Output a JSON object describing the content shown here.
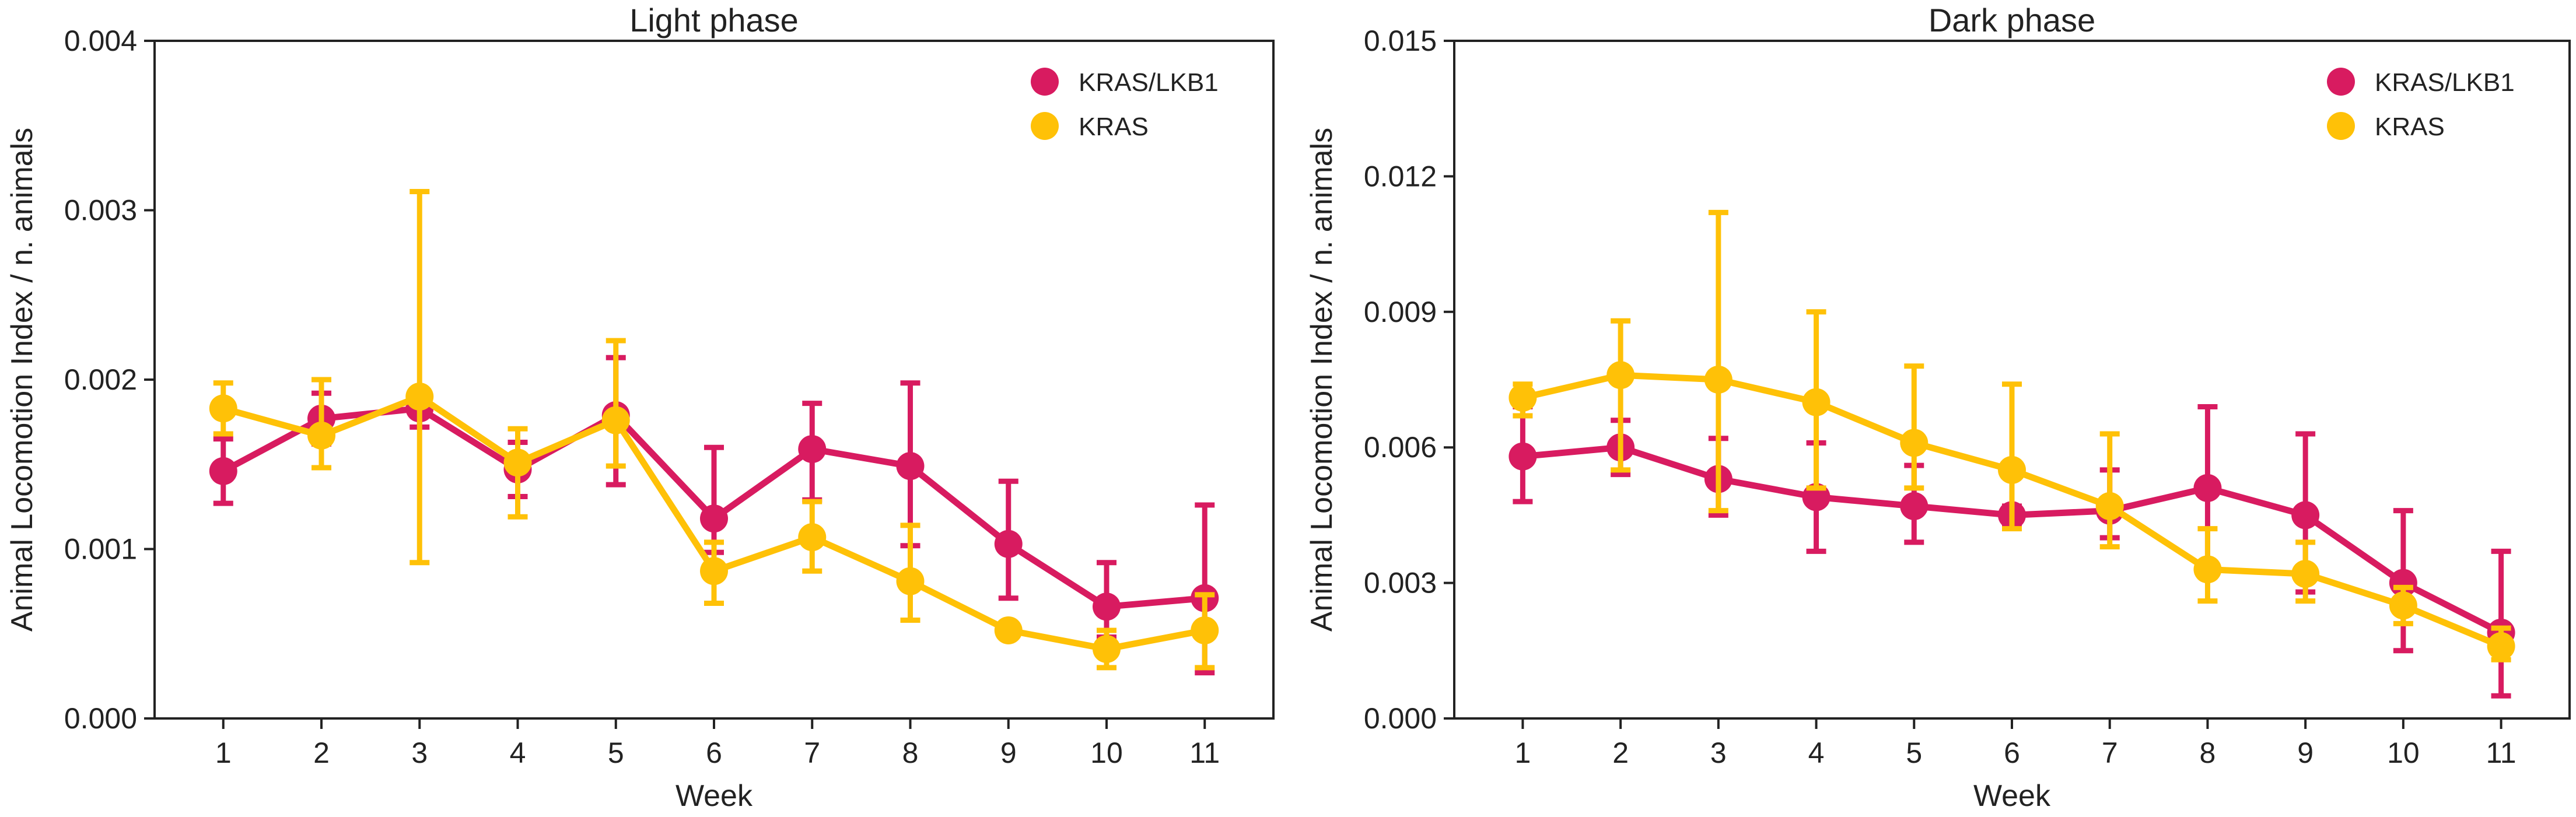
{
  "chart_data": [
    {
      "type": "line",
      "title": "Light phase",
      "xlabel": "Week",
      "ylabel": "Animal Locomotion Index / n. animals",
      "x": [
        1,
        2,
        3,
        4,
        5,
        6,
        7,
        8,
        9,
        10,
        11
      ],
      "xlim": [
        0.3,
        11.7
      ],
      "ylim": [
        0,
        0.004
      ],
      "yticks": [
        "0.000",
        "0.001",
        "0.002",
        "0.003",
        "0.004"
      ],
      "legend": "top-right",
      "series": [
        {
          "name": "KRAS/LKB1",
          "color": "#d81b60",
          "values": [
            0.00146,
            0.00177,
            0.00183,
            0.00147,
            0.00179,
            0.00118,
            0.00159,
            0.00149,
            0.00103,
            0.00066,
            0.00071
          ],
          "err_low": [
            0.00127,
            0.00162,
            0.00172,
            0.00131,
            0.00138,
            0.00098,
            0.00129,
            0.00102,
            0.00071,
            0.00048,
            0.00027
          ],
          "err_high": [
            0.00165,
            0.00192,
            0.00194,
            0.00163,
            0.00213,
            0.0016,
            0.00186,
            0.00198,
            0.0014,
            0.00092,
            0.00126
          ]
        },
        {
          "name": "KRAS",
          "color": "#ffc107",
          "values": [
            0.00183,
            0.00167,
            0.0019,
            0.00151,
            0.00176,
            0.00087,
            0.00107,
            0.00081,
            0.00052,
            0.00041,
            0.00052
          ],
          "err_low": [
            0.00168,
            0.00148,
            0.00092,
            0.00119,
            0.00149,
            0.00068,
            0.00087,
            0.00058,
            0.00052,
            0.0003,
            0.0003
          ],
          "err_high": [
            0.00198,
            0.002,
            0.00311,
            0.00171,
            0.00223,
            0.00104,
            0.00128,
            0.00114,
            0.00052,
            0.00052,
            0.00073
          ]
        }
      ]
    },
    {
      "type": "line",
      "title": "Dark phase",
      "xlabel": "Week",
      "ylabel": "Animal Locomotion Index / n. animals",
      "x": [
        1,
        2,
        3,
        4,
        5,
        6,
        7,
        8,
        9,
        10,
        11
      ],
      "xlim": [
        0.3,
        11.7
      ],
      "ylim": [
        0,
        0.015
      ],
      "yticks": [
        "0.000",
        "0.003",
        "0.006",
        "0.009",
        "0.012",
        "0.015"
      ],
      "legend": "top-right",
      "series": [
        {
          "name": "KRAS/LKB1",
          "color": "#d81b60",
          "values": [
            0.0058,
            0.006,
            0.0053,
            0.0049,
            0.0047,
            0.0045,
            0.0046,
            0.0051,
            0.0045,
            0.003,
            0.0019
          ],
          "err_low": [
            0.0048,
            0.0054,
            0.0045,
            0.0037,
            0.0039,
            0.0043,
            0.004,
            0.0033,
            0.0028,
            0.0015,
            0.0005
          ],
          "err_high": [
            0.0069,
            0.0066,
            0.0062,
            0.0061,
            0.0056,
            0.0047,
            0.0055,
            0.0069,
            0.0063,
            0.0046,
            0.0037
          ]
        },
        {
          "name": "KRAS",
          "color": "#ffc107",
          "values": [
            0.0071,
            0.0076,
            0.0075,
            0.007,
            0.0061,
            0.0055,
            0.0047,
            0.0033,
            0.0032,
            0.0025,
            0.0016
          ],
          "err_low": [
            0.0067,
            0.0055,
            0.0046,
            0.0051,
            0.0051,
            0.0042,
            0.0038,
            0.0026,
            0.0026,
            0.0021,
            0.0013
          ],
          "err_high": [
            0.0074,
            0.0088,
            0.0112,
            0.009,
            0.0078,
            0.0074,
            0.0063,
            0.0042,
            0.0039,
            0.0029,
            0.002
          ]
        }
      ]
    }
  ]
}
